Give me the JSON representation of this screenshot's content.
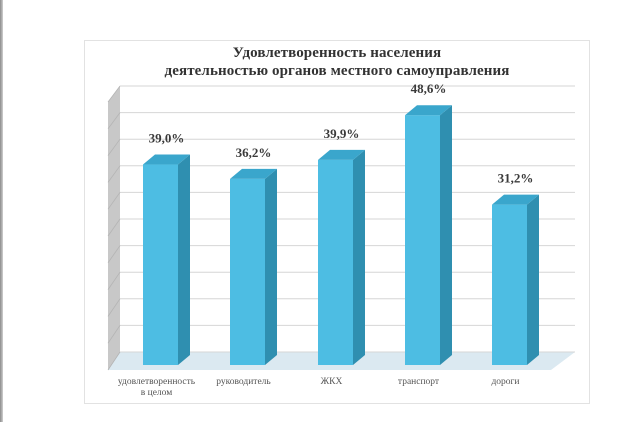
{
  "chart_data": {
    "type": "bar",
    "style": "3d-column",
    "title": "Удовлетворенность населения деятельностью органов местного самоуправления",
    "title_lines": [
      "Удовлетворенность населения",
      "деятельностью органов местного самоуправления"
    ],
    "categories": [
      "удовлетворенность в целом",
      "руководитель",
      "ЖКХ",
      "транспорт",
      "дороги"
    ],
    "category_lines": [
      [
        "удовлетворенность",
        "в целом"
      ],
      [
        "руководитель"
      ],
      [
        "ЖКХ"
      ],
      [
        "транспорт"
      ],
      [
        "дороги"
      ]
    ],
    "values": [
      39.0,
      36.2,
      39.9,
      48.6,
      31.2
    ],
    "value_labels": [
      "39,0%",
      "36,2%",
      "39,9%",
      "48,6%",
      "31,2%"
    ],
    "xlabel": "",
    "ylabel": "",
    "ylim": [
      0,
      60
    ],
    "grid": true,
    "gridline_count": 11,
    "y_tick_labels_visible": false,
    "legend": "none",
    "colors": {
      "bar_front": "#4dbde3",
      "bar_side": "#2f8fb0",
      "bar_top": "#3aa6cc",
      "wall": "#c8c8c8",
      "floor": "#dbe9f1",
      "grid": "#d6d6d6",
      "frame": "#e2e2e2"
    }
  }
}
